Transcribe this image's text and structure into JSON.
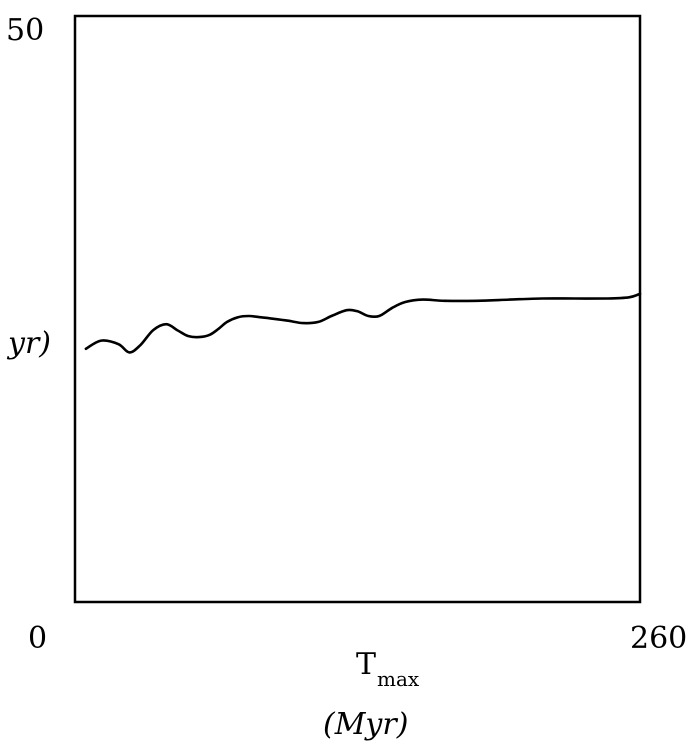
{
  "chart_data": {
    "type": "line",
    "title": "",
    "xlabel_main": "T",
    "xlabel_sub": "max",
    "xlabel_unit": "(Myr)",
    "ylabel_fragment": "yr)",
    "x_tick_labels": [
      "0",
      "260"
    ],
    "y_tick_labels": [
      "50"
    ],
    "xlim": [
      0,
      260
    ],
    "ylim": [
      0,
      50
    ],
    "grid": false,
    "series": [
      {
        "x": [
          5,
          12,
          20,
          25,
          30,
          36,
          42,
          47,
          52,
          57,
          62,
          66,
          70,
          75,
          80,
          85,
          90,
          98,
          105,
          112,
          118,
          125,
          130,
          135,
          140,
          146,
          152,
          160,
          170,
          185,
          200,
          215,
          230,
          245,
          255,
          260
        ],
        "y": [
          21.6,
          22.3,
          22.0,
          21.3,
          21.9,
          23.2,
          23.7,
          23.2,
          22.7,
          22.6,
          22.8,
          23.3,
          23.9,
          24.3,
          24.4,
          24.3,
          24.2,
          24.0,
          23.8,
          23.9,
          24.4,
          24.9,
          24.8,
          24.4,
          24.4,
          25.1,
          25.6,
          25.8,
          25.7,
          25.7,
          25.8,
          25.9,
          25.9,
          25.9,
          26.0,
          26.3
        ]
      }
    ]
  }
}
